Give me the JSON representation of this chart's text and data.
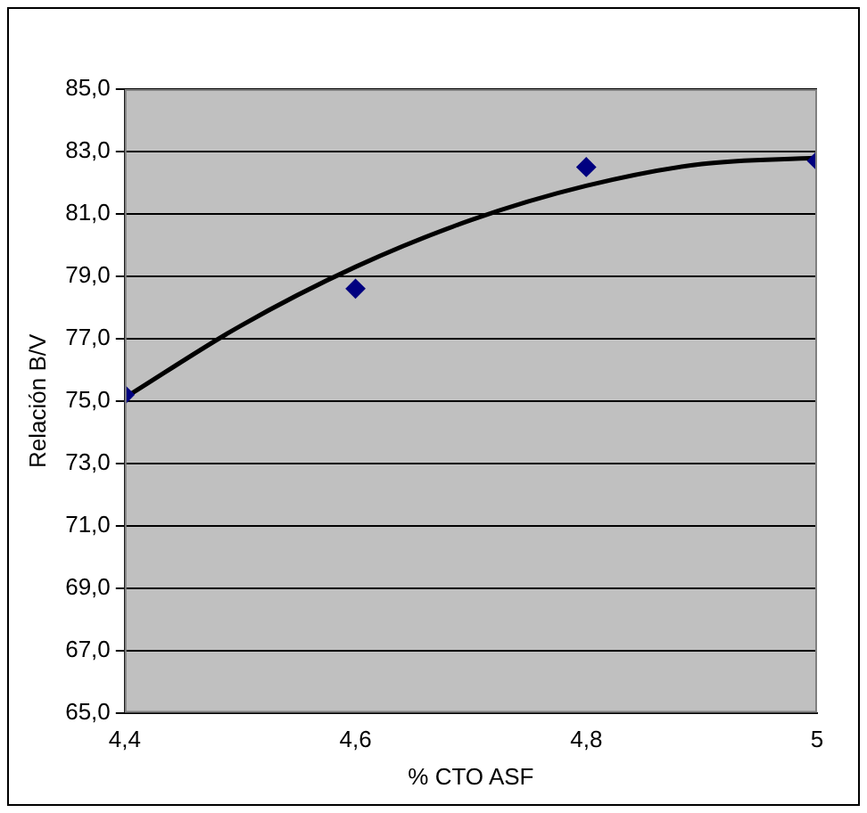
{
  "chart_data": {
    "type": "scatter",
    "xlabel": "% CTO ASF",
    "ylabel": "Relación B/V",
    "x": [
      4.4,
      4.6,
      4.8,
      5
    ],
    "series": [
      {
        "color": "#000080",
        "marker": "diamond",
        "values": [
          75.2,
          78.6,
          82.5,
          82.7
        ]
      },
      {
        "type": "line",
        "color": "#000000",
        "marker": "none",
        "x": [
          4.4,
          4.5,
          4.6,
          4.7,
          4.8,
          4.9,
          5
        ],
        "values": [
          75.1,
          77.4,
          79.3,
          80.8,
          81.9,
          82.6,
          82.8
        ]
      }
    ],
    "xlim": [
      4.4,
      5
    ],
    "xticks": [
      {
        "value": 4.4,
        "label": "4,4"
      },
      {
        "value": 4.6,
        "label": "4,6"
      },
      {
        "value": 4.8,
        "label": "4,8"
      },
      5
    ],
    "ylim": [
      65,
      85
    ],
    "yticks": [
      {
        "value": 65,
        "label": "65,0"
      },
      {
        "value": 67,
        "label": "67,0"
      },
      {
        "value": 69,
        "label": "69,0"
      },
      {
        "value": 71,
        "label": "71,0"
      },
      {
        "value": 73,
        "label": "73,0"
      },
      {
        "value": 75,
        "label": "75,0"
      },
      {
        "value": 77,
        "label": "77,0"
      },
      {
        "value": 79,
        "label": "79,0"
      },
      {
        "value": 81,
        "label": "81,0"
      },
      {
        "value": 83,
        "label": "83,0"
      },
      {
        "value": 85,
        "label": "85,0"
      }
    ],
    "grid": "y",
    "legend": false
  }
}
